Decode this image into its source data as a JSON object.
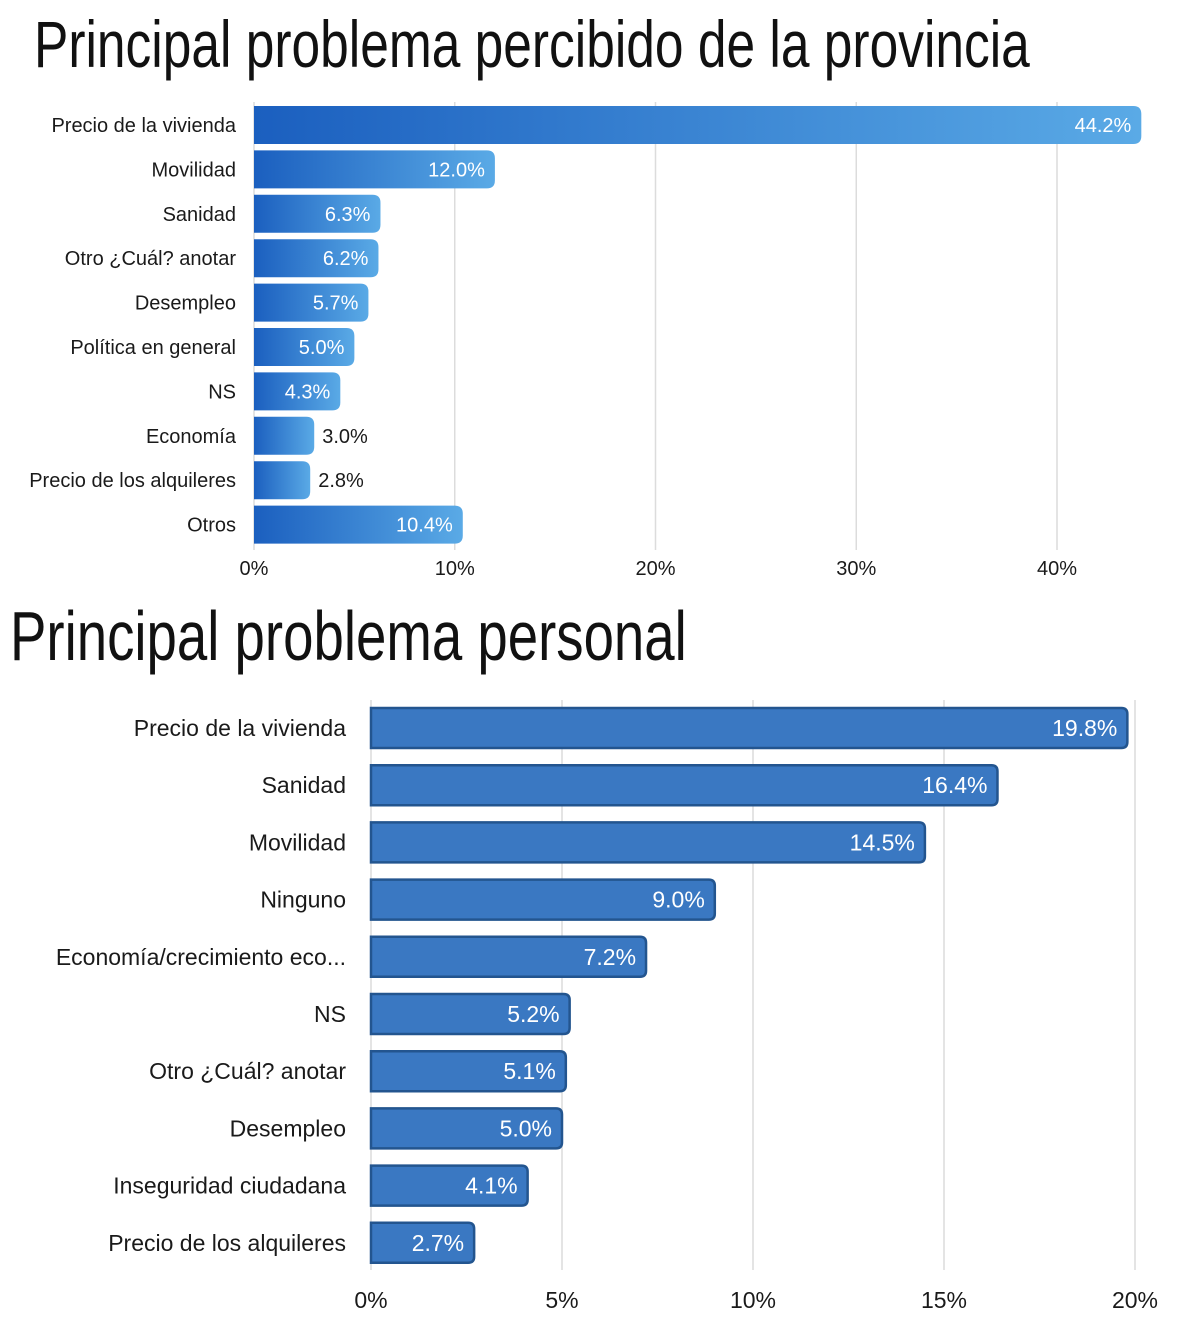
{
  "chart_data": [
    {
      "type": "bar",
      "orientation": "horizontal",
      "title": "Principal problema percibido de la provincia",
      "categories": [
        "Precio de la vivienda",
        "Movilidad",
        "Sanidad",
        "Otro ¿Cuál? anotar",
        "Desempleo",
        "Política en general",
        "NS",
        "Economía",
        "Precio de los alquileres",
        "Otros"
      ],
      "values": [
        44.2,
        12.0,
        6.3,
        6.2,
        5.7,
        5.0,
        4.3,
        3.0,
        2.8,
        10.4
      ],
      "value_labels": [
        "44.2%",
        "12.0%",
        "6.3%",
        "6.2%",
        "5.7%",
        "5.0%",
        "4.3%",
        "3.0%",
        "2.8%",
        "10.4%"
      ],
      "xticks": [
        "0%",
        "10%",
        "20%",
        "30%",
        "40%"
      ],
      "xtick_values": [
        0,
        10,
        20,
        30,
        40
      ],
      "xlim": [
        0,
        45
      ],
      "xlabel": "",
      "ylabel": "",
      "grid": true,
      "colors": {
        "bar_dark": "#1b5fbf",
        "bar_light": "#5aaae6",
        "grid": "#dcdcdc"
      }
    },
    {
      "type": "bar",
      "orientation": "horizontal",
      "title": "Principal problema personal",
      "categories": [
        "Precio de la vivienda",
        "Sanidad",
        "Movilidad",
        "Ninguno",
        "Economía/crecimiento eco...",
        "NS",
        "Otro ¿Cuál? anotar",
        "Desempleo",
        "Inseguridad ciudadana",
        "Precio de los alquileres"
      ],
      "values": [
        19.8,
        16.4,
        14.5,
        9.0,
        7.2,
        5.2,
        5.1,
        5.0,
        4.1,
        2.7
      ],
      "value_labels": [
        "19.8%",
        "16.4%",
        "14.5%",
        "9.0%",
        "7.2%",
        "5.2%",
        "5.1%",
        "5.0%",
        "4.1%",
        "2.7%"
      ],
      "xticks": [
        "0%",
        "5%",
        "10%",
        "15%",
        "20%"
      ],
      "xtick_values": [
        0,
        5,
        10,
        15,
        20
      ],
      "xlim": [
        0,
        20.5
      ],
      "xlabel": "",
      "ylabel": "",
      "grid": true,
      "colors": {
        "bar": "#3a78c2",
        "bar_edge": "#23558f",
        "grid": "#dcdcdc"
      }
    }
  ]
}
